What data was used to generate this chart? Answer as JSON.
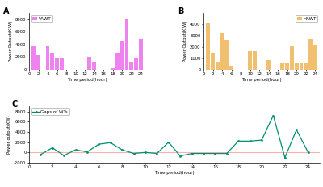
{
  "vawt_values": [
    3700,
    2300,
    0,
    3700,
    2600,
    1750,
    1800,
    0,
    0,
    0,
    0,
    0,
    2000,
    1200,
    0,
    0,
    0,
    300,
    2700,
    4500,
    8000,
    1100,
    1800,
    4900
  ],
  "hawt_values": [
    4100,
    1400,
    650,
    3200,
    2600,
    350,
    0,
    0,
    0,
    1650,
    1650,
    0,
    0,
    850,
    0,
    0,
    600,
    550,
    2050,
    600,
    600,
    550,
    2750,
    2200
  ],
  "gaps_values": [
    -400,
    900,
    -600,
    500,
    100,
    1600,
    1900,
    500,
    -200,
    0,
    -200,
    2000,
    -700,
    -200,
    -200,
    -200,
    -200,
    2200,
    2200,
    2400,
    7200,
    -1000,
    4400,
    0
  ],
  "time_periods": [
    1,
    2,
    3,
    4,
    5,
    6,
    7,
    8,
    9,
    10,
    11,
    12,
    13,
    14,
    15,
    16,
    17,
    18,
    19,
    20,
    21,
    22,
    23,
    24
  ],
  "vawt_color": "#ee82ee",
  "hawt_color": "#f0c070",
  "gaps_color": "#009070",
  "zero_line_color": "#ffb0b0",
  "xlabel": "Time period(hour)",
  "ylabel_vawt": "Power Output(K W)",
  "ylabel_hawt": "Power Output(K W)",
  "ylabel_gaps": "Power output(KW)",
  "vawt_label": "VAWT",
  "hawt_label": "HAWT",
  "gaps_label": "Gaps of WTs",
  "vawt_ylim": [
    0,
    9000
  ],
  "hawt_ylim": [
    0,
    5000
  ],
  "gaps_ylim": [
    -2000,
    9000
  ],
  "vawt_yticks": [
    0,
    2000,
    4000,
    6000,
    8000
  ],
  "hawt_yticks": [
    0,
    1000,
    2000,
    3000,
    4000
  ],
  "gaps_yticks": [
    -2000,
    0,
    2000,
    4000,
    6000,
    8000
  ],
  "xticks": [
    0,
    2,
    4,
    6,
    8,
    10,
    12,
    14,
    16,
    18,
    20,
    22,
    24
  ],
  "label_A": "A",
  "label_B": "B",
  "label_C": "C"
}
